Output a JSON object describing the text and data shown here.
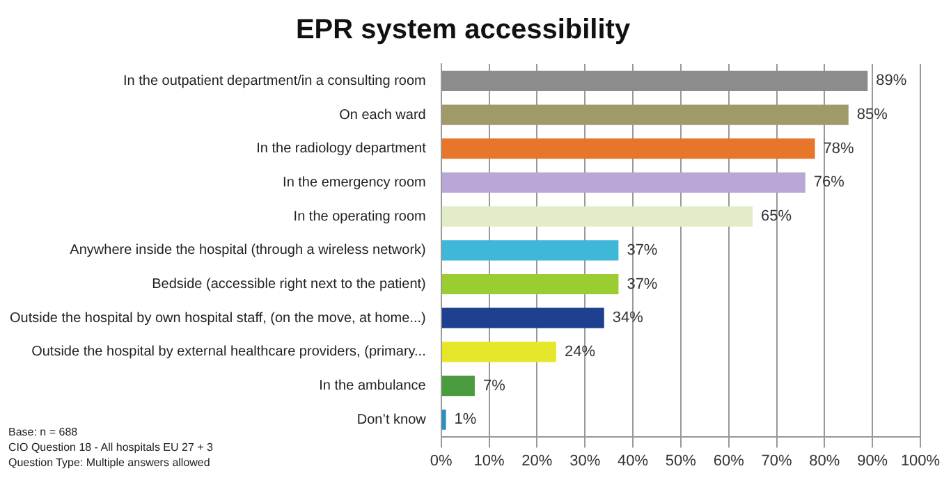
{
  "chart_data": {
    "type": "bar",
    "orientation": "horizontal",
    "title": "EPR system accessibility",
    "categories": [
      "In the outpatient department/in a consulting room",
      "On each ward",
      "In the radiology department",
      "In the emergency room",
      "In the operating room",
      "Anywhere inside the hospital (through a wireless network)",
      "Bedside (accessible right next to the patient)",
      "Outside the hospital by own hospital staff, (on the move, at home...)",
      "Outside the hospital by external healthcare providers, (primary...",
      "In the ambulance",
      "Don’t know"
    ],
    "values": [
      89,
      85,
      78,
      76,
      65,
      37,
      37,
      34,
      24,
      7,
      1
    ],
    "value_labels": [
      "89%",
      "85%",
      "78%",
      "76%",
      "65%",
      "37%",
      "37%",
      "34%",
      "24%",
      "7%",
      "1%"
    ],
    "colors": [
      "#8c8c8c",
      "#a09a68",
      "#e8762a",
      "#b9a7d6",
      "#e2ecc8",
      "#3fb7d9",
      "#9acd32",
      "#1f3f8f",
      "#e6e62a",
      "#4a9a3e",
      "#2a8fc0"
    ],
    "xlim": [
      0,
      100
    ],
    "xticks": [
      {
        "value": 0,
        "label": "0%"
      },
      {
        "value": 10,
        "label": "10%"
      },
      {
        "value": 20,
        "label": "20%"
      },
      {
        "value": 30,
        "label": "30%"
      },
      {
        "value": 40,
        "label": "40%"
      },
      {
        "value": 50,
        "label": "50%"
      },
      {
        "value": 60,
        "label": "60%"
      },
      {
        "value": 70,
        "label": "70%"
      },
      {
        "value": 80,
        "label": "80%"
      },
      {
        "value": 90,
        "label": "90%"
      },
      {
        "value": 100,
        "label": "100%"
      }
    ],
    "grid": "x",
    "legend": false,
    "annotations": [
      "Base: n = 688",
      "CIO Question 18 - All hospitals EU 27 + 3",
      "Question Type: Multiple answers allowed"
    ]
  }
}
